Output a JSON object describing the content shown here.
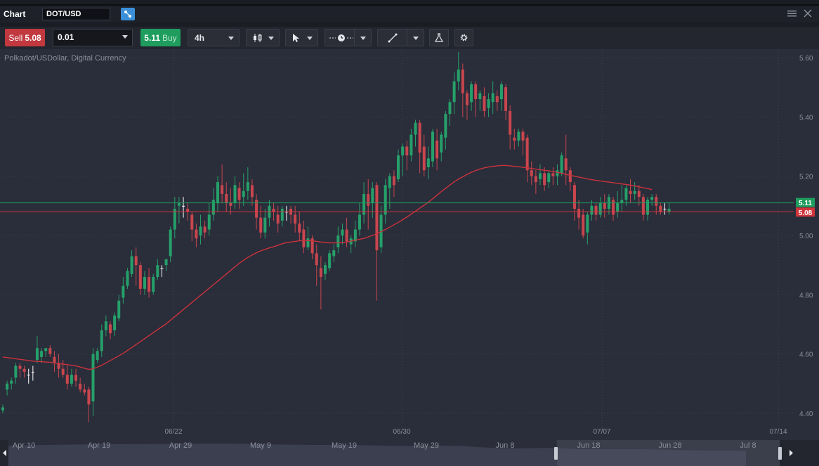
{
  "window": {
    "title": "Chart",
    "symbol": "DOT/USD"
  },
  "toolbar": {
    "sell_label": "Sell",
    "sell_price": "5.08",
    "quantity": "0.01",
    "buy_price": "5.11",
    "buy_label": "Buy",
    "timeframe": "4h"
  },
  "instrument_label": "Polkadot/USDollar, Digital Currency",
  "colors": {
    "up": "#26a06a",
    "down": "#c9464e",
    "ma": "#c9333d",
    "bid": "#d1343b",
    "ask": "#1f9d5e"
  },
  "chart_data": {
    "type": "candlestick",
    "y_ticks": [
      "5.60",
      "5.40",
      "5.20",
      "5.00",
      "4.80",
      "4.60",
      "4.40"
    ],
    "y_tick_values": [
      5.6,
      5.4,
      5.2,
      5.0,
      4.8,
      4.6,
      4.4
    ],
    "x_ticks": [
      "06/22",
      "06/30",
      "07/07",
      "07/14"
    ],
    "ylim": [
      4.36,
      5.64
    ],
    "ask_line": {
      "label": "5.11",
      "value": 5.11
    },
    "bid_line": {
      "label": "5.08",
      "value": 5.08
    },
    "candles": [
      [
        4.41,
        4.42,
        4.4,
        4.43
      ],
      [
        4.48,
        4.5,
        4.46,
        4.51
      ],
      [
        4.5,
        4.51,
        4.48,
        4.52
      ],
      [
        4.52,
        4.56,
        4.5,
        4.57
      ],
      [
        4.56,
        4.55,
        4.52,
        4.57
      ],
      [
        4.55,
        4.54,
        4.52,
        4.56
      ],
      [
        4.53,
        4.53,
        4.5,
        4.55
      ],
      [
        4.54,
        4.54,
        4.51,
        4.56
      ],
      [
        4.58,
        4.62,
        4.57,
        4.66
      ],
      [
        4.59,
        4.61,
        4.57,
        4.62
      ],
      [
        4.61,
        4.62,
        4.59,
        4.62
      ],
      [
        4.62,
        4.6,
        4.59,
        4.63
      ],
      [
        4.59,
        4.57,
        4.54,
        4.61
      ],
      [
        4.57,
        4.55,
        4.52,
        4.6
      ],
      [
        4.55,
        4.53,
        4.52,
        4.58
      ],
      [
        4.53,
        4.5,
        4.48,
        4.56
      ],
      [
        4.5,
        4.53,
        4.49,
        4.55
      ],
      [
        4.53,
        4.51,
        4.49,
        4.55
      ],
      [
        4.5,
        4.48,
        4.47,
        4.52
      ],
      [
        4.48,
        4.47,
        4.46,
        4.5
      ],
      [
        4.48,
        4.43,
        4.37,
        4.49
      ],
      [
        4.44,
        4.6,
        4.39,
        4.62
      ],
      [
        4.58,
        4.61,
        4.57,
        4.62
      ],
      [
        4.61,
        4.68,
        4.59,
        4.7
      ],
      [
        4.68,
        4.71,
        4.66,
        4.73
      ],
      [
        4.7,
        4.67,
        4.65,
        4.71
      ],
      [
        4.68,
        4.73,
        4.66,
        4.74
      ],
      [
        4.72,
        4.78,
        4.71,
        4.8
      ],
      [
        4.79,
        4.83,
        4.77,
        4.86
      ],
      [
        4.83,
        4.88,
        4.82,
        4.89
      ],
      [
        4.87,
        4.93,
        4.86,
        4.95
      ],
      [
        4.93,
        4.9,
        4.83,
        4.96
      ],
      [
        4.9,
        4.82,
        4.8,
        4.91
      ],
      [
        4.82,
        4.86,
        4.8,
        4.88
      ],
      [
        4.86,
        4.81,
        4.79,
        4.89
      ],
      [
        4.81,
        4.86,
        4.8,
        4.87
      ],
      [
        4.86,
        4.9,
        4.85,
        4.92
      ],
      [
        4.89,
        4.89,
        4.86,
        4.9
      ],
      [
        4.9,
        4.92,
        4.88,
        4.92
      ],
      [
        4.93,
        5.02,
        4.91,
        5.03
      ],
      [
        5.02,
        5.09,
        4.99,
        5.13
      ],
      [
        5.1,
        5.11,
        5.04,
        5.13
      ],
      [
        5.1,
        5.1,
        5.06,
        5.13
      ],
      [
        5.09,
        5.08,
        5.05,
        5.11
      ],
      [
        5.07,
        5.02,
        4.98,
        5.08
      ],
      [
        5.02,
        4.99,
        4.96,
        5.04
      ],
      [
        5.0,
        5.03,
        4.97,
        5.07
      ],
      [
        5.03,
        5.01,
        4.99,
        5.05
      ],
      [
        5.02,
        5.07,
        5.0,
        5.11
      ],
      [
        5.07,
        5.12,
        5.05,
        5.16
      ],
      [
        5.11,
        5.18,
        5.08,
        5.2
      ],
      [
        5.17,
        5.14,
        5.11,
        5.24
      ],
      [
        5.14,
        5.11,
        5.08,
        5.18
      ],
      [
        5.11,
        5.1,
        5.07,
        5.16
      ],
      [
        5.11,
        5.17,
        5.09,
        5.2
      ],
      [
        5.16,
        5.12,
        5.09,
        5.18
      ],
      [
        5.13,
        5.15,
        5.1,
        5.21
      ],
      [
        5.15,
        5.18,
        5.12,
        5.23
      ],
      [
        5.17,
        5.13,
        5.1,
        5.19
      ],
      [
        5.12,
        5.06,
        5.02,
        5.14
      ],
      [
        5.06,
        5.01,
        4.99,
        5.1
      ],
      [
        5.01,
        5.06,
        4.99,
        5.09
      ],
      [
        5.06,
        5.1,
        5.03,
        5.12
      ],
      [
        5.09,
        5.08,
        5.05,
        5.11
      ],
      [
        5.07,
        5.04,
        5.01,
        5.1
      ],
      [
        5.05,
        5.09,
        5.03,
        5.1
      ],
      [
        5.08,
        5.08,
        5.05,
        5.1
      ],
      [
        5.09,
        5.07,
        5.04,
        5.1
      ],
      [
        5.07,
        5.04,
        5.01,
        5.1
      ],
      [
        5.04,
        5.01,
        4.98,
        5.08
      ],
      [
        5.02,
        4.96,
        4.94,
        5.05
      ],
      [
        4.96,
        4.99,
        4.95,
        5.03
      ],
      [
        4.99,
        4.94,
        4.92,
        5.0
      ],
      [
        4.94,
        4.9,
        4.83,
        4.97
      ],
      [
        4.89,
        4.86,
        4.75,
        4.93
      ],
      [
        4.87,
        4.9,
        4.85,
        4.91
      ],
      [
        4.89,
        4.94,
        4.88,
        4.95
      ],
      [
        4.93,
        4.95,
        4.91,
        4.97
      ],
      [
        4.96,
        5.0,
        4.94,
        5.03
      ],
      [
        5.0,
        5.02,
        4.97,
        5.04
      ],
      [
        5.02,
        4.98,
        4.96,
        5.06
      ],
      [
        4.97,
        4.99,
        4.94,
        5.0
      ],
      [
        4.98,
        5.02,
        4.96,
        5.05
      ],
      [
        5.02,
        5.07,
        5.0,
        5.11
      ],
      [
        5.07,
        5.14,
        5.04,
        5.18
      ],
      [
        5.14,
        5.1,
        5.02,
        5.19
      ],
      [
        5.11,
        5.16,
        5.06,
        5.18
      ],
      [
        5.17,
        4.95,
        4.78,
        5.18
      ],
      [
        4.96,
        5.07,
        4.94,
        5.1
      ],
      [
        5.07,
        5.17,
        5.04,
        5.19
      ],
      [
        5.16,
        5.2,
        5.09,
        5.21
      ],
      [
        5.2,
        5.17,
        5.13,
        5.22
      ],
      [
        5.19,
        5.27,
        5.18,
        5.29
      ],
      [
        5.27,
        5.3,
        5.2,
        5.31
      ],
      [
        5.3,
        5.27,
        5.22,
        5.32
      ],
      [
        5.27,
        5.34,
        5.25,
        5.36
      ],
      [
        5.34,
        5.38,
        5.3,
        5.39
      ],
      [
        5.38,
        5.28,
        5.21,
        5.39
      ],
      [
        5.3,
        5.22,
        5.2,
        5.34
      ],
      [
        5.23,
        5.26,
        5.19,
        5.3
      ],
      [
        5.25,
        5.35,
        5.23,
        5.36
      ],
      [
        5.32,
        5.26,
        5.22,
        5.36
      ],
      [
        5.28,
        5.34,
        5.25,
        5.35
      ],
      [
        5.33,
        5.41,
        5.29,
        5.42
      ],
      [
        5.41,
        5.45,
        5.37,
        5.46
      ],
      [
        5.45,
        5.52,
        5.41,
        5.55
      ],
      [
        5.52,
        5.56,
        5.49,
        5.62
      ],
      [
        5.56,
        5.48,
        5.4,
        5.58
      ],
      [
        5.48,
        5.44,
        5.39,
        5.49
      ],
      [
        5.45,
        5.51,
        5.42,
        5.52
      ],
      [
        5.51,
        5.46,
        5.4,
        5.52
      ],
      [
        5.46,
        5.48,
        5.42,
        5.49
      ],
      [
        5.47,
        5.42,
        5.4,
        5.5
      ],
      [
        5.43,
        5.46,
        5.4,
        5.48
      ],
      [
        5.45,
        5.48,
        5.41,
        5.52
      ],
      [
        5.47,
        5.45,
        5.42,
        5.49
      ],
      [
        5.46,
        5.51,
        5.42,
        5.52
      ],
      [
        5.5,
        5.42,
        5.39,
        5.51
      ],
      [
        5.42,
        5.34,
        5.29,
        5.44
      ],
      [
        5.33,
        5.32,
        5.29,
        5.36
      ],
      [
        5.32,
        5.35,
        5.3,
        5.36
      ],
      [
        5.35,
        5.32,
        5.27,
        5.36
      ],
      [
        5.33,
        5.22,
        5.18,
        5.34
      ],
      [
        5.22,
        5.2,
        5.17,
        5.25
      ],
      [
        5.2,
        5.18,
        5.14,
        5.22
      ],
      [
        5.19,
        5.21,
        5.17,
        5.24
      ],
      [
        5.21,
        5.17,
        5.15,
        5.23
      ],
      [
        5.18,
        5.21,
        5.16,
        5.22
      ],
      [
        5.21,
        5.2,
        5.17,
        5.23
      ],
      [
        5.2,
        5.22,
        5.17,
        5.24
      ],
      [
        5.21,
        5.27,
        5.2,
        5.28
      ],
      [
        5.26,
        5.22,
        5.17,
        5.34
      ],
      [
        5.22,
        5.18,
        5.15,
        5.23
      ],
      [
        5.17,
        5.09,
        5.05,
        5.18
      ],
      [
        5.09,
        5.06,
        5.02,
        5.12
      ],
      [
        5.07,
        5.0,
        4.99,
        5.09
      ],
      [
        5.01,
        5.07,
        4.97,
        5.08
      ],
      [
        5.07,
        5.1,
        5.05,
        5.12
      ],
      [
        5.1,
        5.07,
        5.05,
        5.11
      ],
      [
        5.07,
        5.11,
        5.06,
        5.13
      ],
      [
        5.11,
        5.09,
        5.06,
        5.14
      ],
      [
        5.09,
        5.13,
        5.07,
        5.14
      ],
      [
        5.12,
        5.07,
        5.05,
        5.13
      ],
      [
        5.08,
        5.11,
        5.06,
        5.15
      ],
      [
        5.11,
        5.12,
        5.08,
        5.17
      ],
      [
        5.12,
        5.16,
        5.1,
        5.17
      ],
      [
        5.15,
        5.14,
        5.11,
        5.19
      ],
      [
        5.14,
        5.15,
        5.12,
        5.18
      ],
      [
        5.15,
        5.13,
        5.1,
        5.17
      ],
      [
        5.13,
        5.07,
        5.05,
        5.14
      ],
      [
        5.07,
        5.12,
        5.05,
        5.13
      ],
      [
        5.12,
        5.13,
        5.1,
        5.14
      ],
      [
        5.13,
        5.1,
        5.07,
        5.14
      ],
      [
        5.1,
        5.08,
        5.07,
        5.11
      ],
      [
        5.09,
        5.09,
        5.07,
        5.11
      ],
      [
        5.08,
        5.09,
        5.07,
        5.11
      ]
    ],
    "ma": [
      4.59,
      4.588,
      4.586,
      4.584,
      4.582,
      4.58,
      4.578,
      4.576,
      4.575,
      4.574,
      4.573,
      4.572,
      4.57,
      4.568,
      4.566,
      4.564,
      4.562,
      4.56,
      4.556,
      4.552,
      4.548,
      4.55,
      4.556,
      4.562,
      4.57,
      4.578,
      4.586,
      4.594,
      4.602,
      4.612,
      4.622,
      4.632,
      4.642,
      4.652,
      4.662,
      4.672,
      4.682,
      4.692,
      4.702,
      4.714,
      4.726,
      4.738,
      4.75,
      4.762,
      4.774,
      4.786,
      4.798,
      4.81,
      4.822,
      4.834,
      4.846,
      4.858,
      4.87,
      4.882,
      4.894,
      4.906,
      4.916,
      4.926,
      4.934,
      4.942,
      4.948,
      4.953,
      4.958,
      4.962,
      4.967,
      4.972,
      4.976,
      4.978,
      4.98,
      4.982,
      4.983,
      4.983,
      4.982,
      4.98,
      4.978,
      4.976,
      4.975,
      4.975,
      4.975,
      4.976,
      4.978,
      4.981,
      4.984,
      4.987,
      4.99,
      4.995,
      5.0,
      5.006,
      5.013,
      5.02,
      5.028,
      5.036,
      5.044,
      5.053,
      5.062,
      5.072,
      5.082,
      5.092,
      5.102,
      5.112,
      5.124,
      5.136,
      5.148,
      5.159,
      5.17,
      5.181,
      5.19,
      5.198,
      5.206,
      5.213,
      5.219,
      5.224,
      5.228,
      5.231,
      5.233,
      5.235,
      5.236,
      5.236,
      5.235,
      5.233,
      5.232,
      5.23,
      5.228,
      5.226,
      5.224,
      5.222,
      5.22,
      5.218,
      5.216,
      5.213,
      5.21,
      5.206,
      5.203,
      5.2,
      5.197,
      5.194,
      5.191,
      5.188,
      5.186,
      5.184,
      5.182,
      5.18,
      5.178,
      5.176,
      5.174,
      5.172,
      5.17,
      5.167,
      5.164,
      5.161,
      5.158,
      5.155
    ]
  },
  "navigator": {
    "labels": [
      "Apr 10",
      "Apr 19",
      "Apr 29",
      "May 9",
      "May 19",
      "May 29",
      "Jun 8",
      "Jun 18",
      "Jun 28",
      "Jul 8"
    ]
  }
}
